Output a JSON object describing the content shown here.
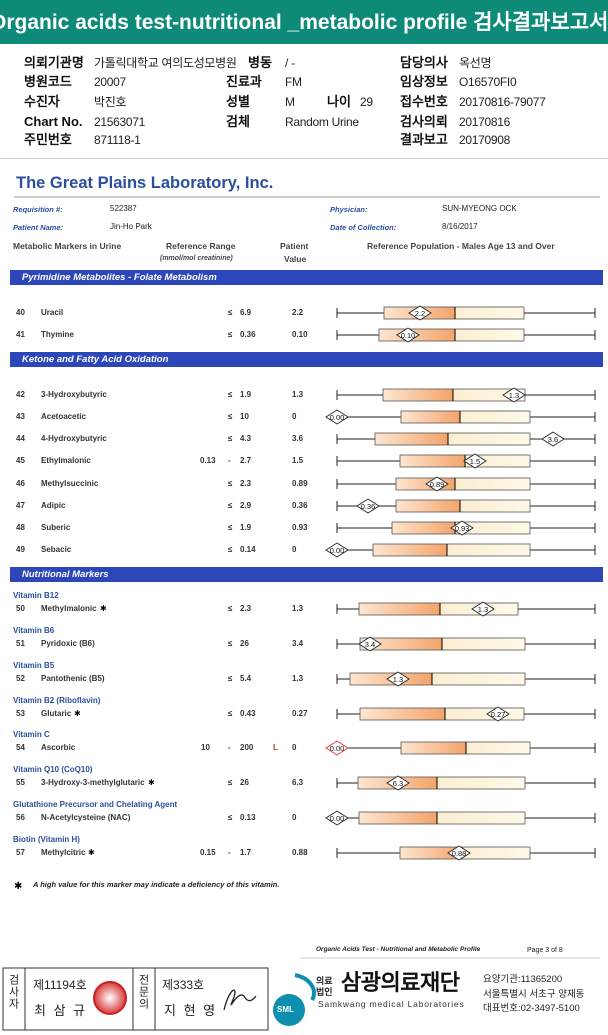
{
  "header": {
    "title": "Organic acids test-nutritional _metabolic profile 검사결과보고서"
  },
  "info": [
    [
      {
        "label": "의뢰기관명",
        "value": "가톨릭대학교 여의도성모병원"
      },
      {
        "label": "병동",
        "value": "/ -"
      },
      {
        "label": "담당의사",
        "value": "옥선명"
      }
    ],
    [
      {
        "label": "병원코드",
        "value": "20007"
      },
      {
        "label": "진료과",
        "value": "FM"
      },
      {
        "label": "임상정보",
        "value": "O16570FI0"
      }
    ],
    [
      {
        "label": "수진자",
        "value": "박진호"
      },
      {
        "label": "성별",
        "value": "M"
      },
      {
        "label": "나이",
        "value": "29"
      },
      {
        "label": "접수번호",
        "value": "20170816-79077"
      }
    ],
    [
      {
        "label": "Chart No.",
        "value": "21563071"
      },
      {
        "label": "검체",
        "value": "Random Urine"
      },
      {
        "label": "검사의뢰",
        "value": "20170816"
      }
    ],
    [
      {
        "label": "주민번호",
        "value": "871118-1"
      },
      {
        "label": "결과보고",
        "value": "20170908"
      }
    ]
  ],
  "lab": {
    "name": "The Great Plains Laboratory, Inc.",
    "requisition_label": "Requisition #:",
    "requisition": "522387",
    "physician_label": "Physician:",
    "physician": "SUN-MYEONG OCK",
    "patient_label": "Patient Name:",
    "patient": "Jin-Ho Park",
    "collection_label": "Date of Collection:",
    "collection": "8/16/2017",
    "col_markers": "Metabolic Markers in Urine",
    "col_range": "Reference Range",
    "col_range_unit": "(mmol/mol creatinine)",
    "col_patient": "Patient",
    "col_value": "Value",
    "col_population": "Reference Population - Males Age 13 and Over"
  },
  "note_mark": "✱",
  "sections": [
    {
      "title": "Pyrimidine Metabolites - Folate Metabolism",
      "rows": [
        {
          "num": "40",
          "name": "Uracil",
          "op": "≤",
          "max": "6.9",
          "value": "2.2",
          "marker": "2.2"
        },
        {
          "num": "41",
          "name": "Thymine",
          "op": "≤",
          "max": "0.36",
          "value": "0.10",
          "marker": "0.10"
        }
      ]
    },
    {
      "title": "Ketone and Fatty Acid Oxidation",
      "rows": [
        {
          "num": "42",
          "name": "3-Hydroxybutyric",
          "op": "≤",
          "max": "1.9",
          "value": "1.3",
          "marker": "1.3"
        },
        {
          "num": "43",
          "name": "Acetoacetic",
          "op": "≤",
          "max": "10",
          "value": "0",
          "marker": "0.00"
        },
        {
          "num": "44",
          "name": "4-Hydroxybutyric",
          "op": "≤",
          "max": "4.3",
          "value": "3.6",
          "marker": "3.6"
        },
        {
          "num": "45",
          "name": "Ethylmalonic",
          "min": "0.13",
          "op": "-",
          "max": "2.7",
          "value": "1.5",
          "marker": "1.5"
        },
        {
          "num": "46",
          "name": "Methylsuccinic",
          "op": "≤",
          "max": "2.3",
          "value": "0.89",
          "marker": "0.89"
        },
        {
          "num": "47",
          "name": "Adipic",
          "op": "≤",
          "max": "2.9",
          "value": "0.36",
          "marker": "0.36"
        },
        {
          "num": "48",
          "name": "Suberic",
          "op": "≤",
          "max": "1.9",
          "value": "0.93",
          "marker": "0.93"
        },
        {
          "num": "49",
          "name": "Sebacic",
          "op": "≤",
          "max": "0.14",
          "value": "0",
          "marker": "0.00"
        }
      ]
    },
    {
      "title": "Nutritional Markers",
      "rows": [
        {
          "group": "Vitamin B12",
          "num": "50",
          "name": "Methylmalonic",
          "starred": true,
          "op": "≤",
          "max": "2.3",
          "value": "1.3",
          "marker": "1.3"
        },
        {
          "group": "Vitamin B6",
          "num": "51",
          "name": "Pyridoxic (B6)",
          "op": "≤",
          "max": "26",
          "value": "3.4",
          "marker": "3.4"
        },
        {
          "group": "Vitamin B5",
          "num": "52",
          "name": "Pantothenic (B5)",
          "op": "≤",
          "max": "5.4",
          "value": "1.3",
          "marker": "1.3"
        },
        {
          "group": "Vitamin B2 (Riboflavin)",
          "num": "53",
          "name": "Glutaric",
          "starred": true,
          "op": "≤",
          "max": "0.43",
          "value": "0.27",
          "marker": "0.27"
        },
        {
          "group": "Vitamin C",
          "num": "54",
          "name": "Ascorbic",
          "min": "10",
          "op": "-",
          "max": "200",
          "flag": "L",
          "value": "0",
          "marker": "0.00"
        },
        {
          "group": "Vitamin Q10 (CoQ10)",
          "num": "55",
          "name": "3-Hydroxy-3-methylglutaric",
          "starred": true,
          "op": "≤",
          "max": "26",
          "value": "6.3",
          "marker": "6.3"
        },
        {
          "group": "Glutathione Precursor and Chelating Agent",
          "num": "56",
          "name": "N-Acetylcysteine (NAC)",
          "op": "≤",
          "max": "0.13",
          "value": "0",
          "marker": "0.00"
        },
        {
          "group": "Biotin (Vitamin H)",
          "num": "57",
          "name": "Methylcitric",
          "starred": true,
          "min": "0.15",
          "op": "-",
          "max": "1.7",
          "value": "0.88",
          "marker": "0.88"
        }
      ]
    }
  ],
  "footnote": "A high value for this marker may indicate a deficiency of this vitamin.",
  "footer": {
    "report": "Organic Acids Test - Nutritional and Metabolic Profile",
    "page": "Page 3 of 8"
  },
  "stamp": {
    "role1": "검사자",
    "id1": "제11194호",
    "name1": "최 삼 규",
    "role2": "전문의",
    "id2": "제333호",
    "name2": "지 현 영",
    "logo": "SML",
    "org_prefix": "의료법인",
    "org": "삼광의료재단",
    "org_en": "Samkwang medical Laboratories",
    "code": "요양기관:11365200",
    "address": "서울특별시 서초구 양재동",
    "phone": "대표번호:02-3497-5100"
  }
}
